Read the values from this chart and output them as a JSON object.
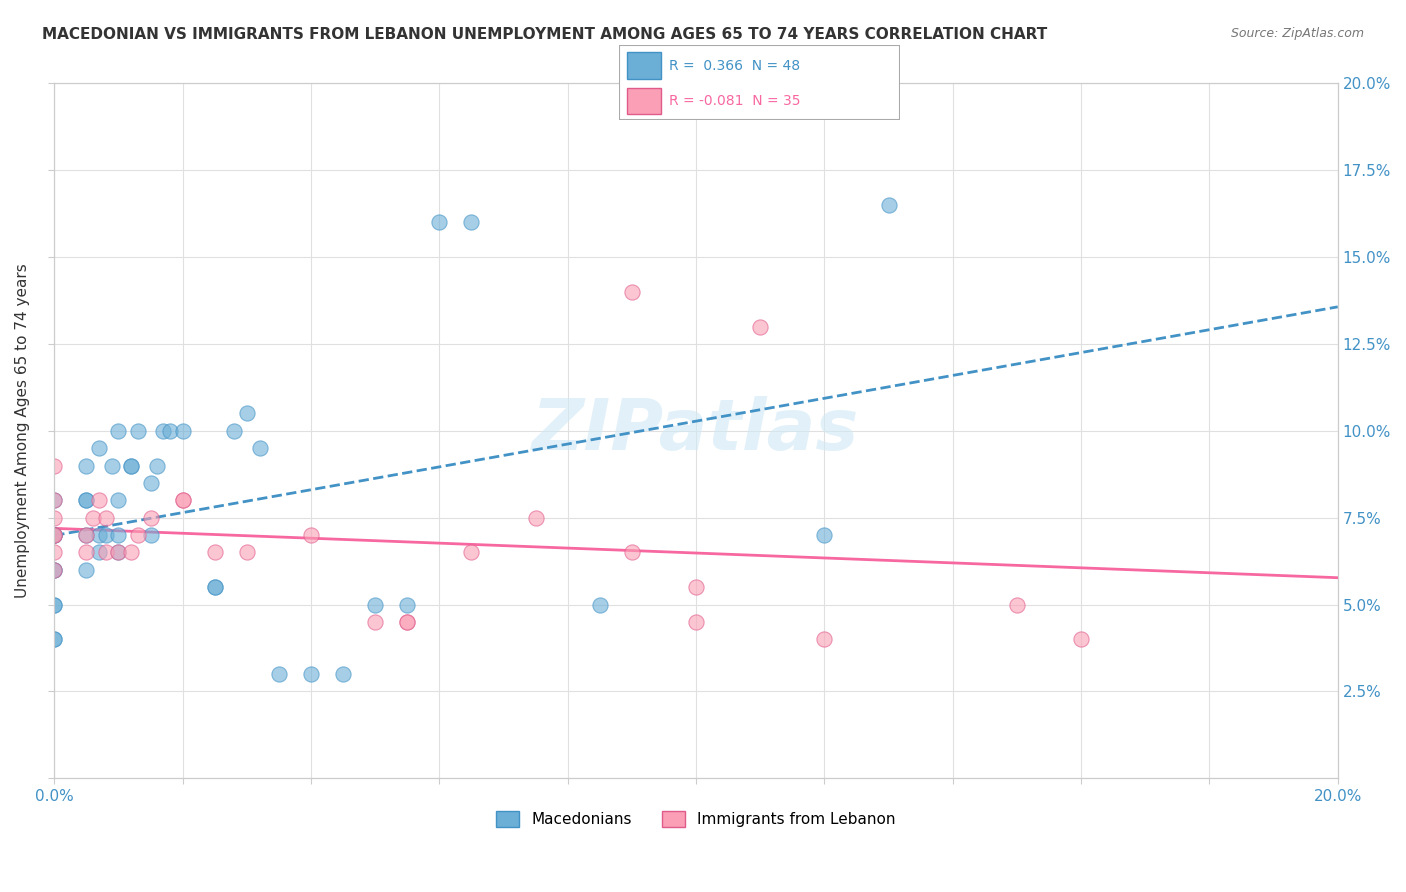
{
  "title": "MACEDONIAN VS IMMIGRANTS FROM LEBANON UNEMPLOYMENT AMONG AGES 65 TO 74 YEARS CORRELATION CHART",
  "source": "Source: ZipAtlas.com",
  "ylabel": "Unemployment Among Ages 65 to 74 years",
  "xlim": [
    0.0,
    0.2
  ],
  "ylim": [
    0.0,
    0.2
  ],
  "x_ticks": [
    0.0,
    0.02,
    0.04,
    0.06,
    0.08,
    0.1,
    0.12,
    0.14,
    0.16,
    0.18,
    0.2
  ],
  "y_ticks": [
    0.0,
    0.025,
    0.05,
    0.075,
    0.1,
    0.125,
    0.15,
    0.175,
    0.2
  ],
  "y_tick_labels": [
    "",
    "2.5%",
    "5.0%",
    "7.5%",
    "10.0%",
    "12.5%",
    "15.0%",
    "17.5%",
    "20.0%"
  ],
  "legend_r1": "R =  0.366  N = 48",
  "legend_r2": "R = -0.081  N = 35",
  "blue_color": "#6baed6",
  "pink_color": "#fa9fb5",
  "blue_line_color": "#4292c6",
  "pink_line_color": "#f768a1",
  "watermark": "ZIPatlas",
  "macedonians_x": [
    0.0,
    0.0,
    0.0,
    0.0,
    0.0,
    0.0,
    0.0,
    0.0,
    0.0,
    0.0,
    0.005,
    0.005,
    0.005,
    0.005,
    0.005,
    0.007,
    0.007,
    0.007,
    0.008,
    0.009,
    0.01,
    0.01,
    0.01,
    0.01,
    0.012,
    0.012,
    0.013,
    0.015,
    0.015,
    0.016,
    0.017,
    0.018,
    0.02,
    0.025,
    0.025,
    0.028,
    0.03,
    0.032,
    0.035,
    0.04,
    0.045,
    0.05,
    0.055,
    0.06,
    0.065,
    0.085,
    0.12,
    0.13
  ],
  "macedonians_y": [
    0.04,
    0.04,
    0.05,
    0.05,
    0.06,
    0.06,
    0.07,
    0.07,
    0.07,
    0.08,
    0.06,
    0.07,
    0.08,
    0.08,
    0.09,
    0.065,
    0.07,
    0.095,
    0.07,
    0.09,
    0.065,
    0.07,
    0.08,
    0.1,
    0.09,
    0.09,
    0.1,
    0.07,
    0.085,
    0.09,
    0.1,
    0.1,
    0.1,
    0.055,
    0.055,
    0.1,
    0.105,
    0.095,
    0.03,
    0.03,
    0.03,
    0.05,
    0.05,
    0.16,
    0.16,
    0.05,
    0.07,
    0.165
  ],
  "lebanon_x": [
    0.0,
    0.0,
    0.0,
    0.0,
    0.0,
    0.0,
    0.0,
    0.005,
    0.005,
    0.006,
    0.007,
    0.008,
    0.008,
    0.01,
    0.012,
    0.013,
    0.015,
    0.02,
    0.02,
    0.025,
    0.03,
    0.04,
    0.05,
    0.055,
    0.055,
    0.065,
    0.075,
    0.09,
    0.09,
    0.1,
    0.1,
    0.11,
    0.12,
    0.15,
    0.16
  ],
  "lebanon_y": [
    0.06,
    0.065,
    0.07,
    0.07,
    0.075,
    0.08,
    0.09,
    0.065,
    0.07,
    0.075,
    0.08,
    0.065,
    0.075,
    0.065,
    0.065,
    0.07,
    0.075,
    0.08,
    0.08,
    0.065,
    0.065,
    0.07,
    0.045,
    0.045,
    0.045,
    0.065,
    0.075,
    0.065,
    0.14,
    0.045,
    0.055,
    0.13,
    0.04,
    0.05,
    0.04
  ]
}
